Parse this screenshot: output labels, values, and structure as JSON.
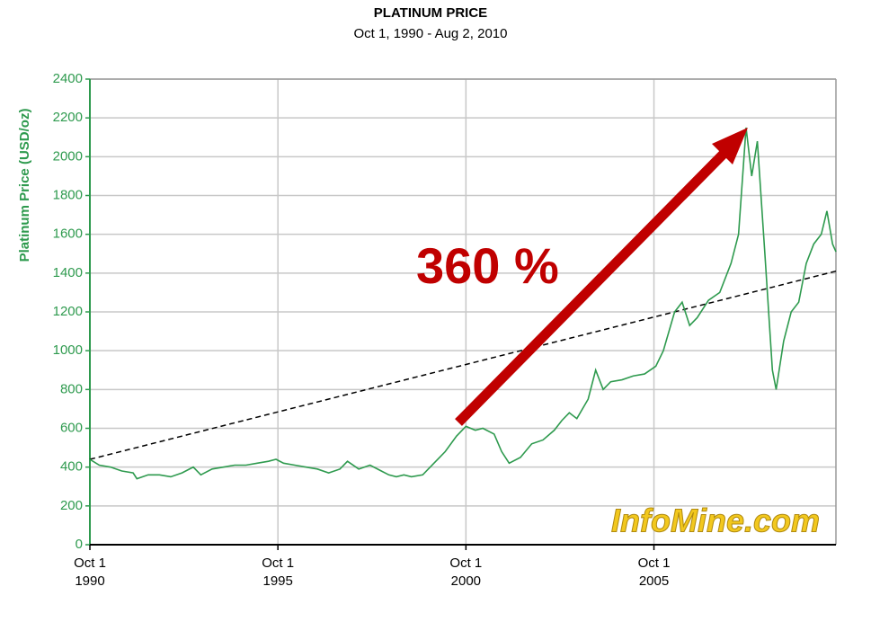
{
  "chart_data": {
    "type": "line",
    "title": "PLATINUM PRICE",
    "subtitle": "Oct 1, 1990 - Aug 2, 2010",
    "y_label": "Platinum Price (USD/oz)",
    "annotation": "360 %",
    "watermark": "InfoMine.com",
    "xlim": [
      1990.75,
      2010.59
    ],
    "xticks": [
      {
        "value": 1990.75,
        "label": "Oct 1\n1990"
      },
      {
        "value": 1995.75,
        "label": "Oct 1\n1995"
      },
      {
        "value": 2000.75,
        "label": "Oct 1\n2000"
      },
      {
        "value": 2005.75,
        "label": "Oct 1\n2005"
      }
    ],
    "ylim": [
      0,
      2400
    ],
    "yticks": [
      0,
      200,
      400,
      600,
      800,
      1000,
      1200,
      1400,
      1600,
      1800,
      2000,
      2200,
      2400
    ],
    "grid": true,
    "series": [
      {
        "color": "#2e9a4e",
        "x": [
          1990.75,
          1991.0,
          1991.3,
          1991.6,
          1991.9,
          1992.0,
          1992.3,
          1992.6,
          1992.9,
          1993.2,
          1993.5,
          1993.7,
          1994.0,
          1994.3,
          1994.6,
          1994.9,
          1995.2,
          1995.5,
          1995.7,
          1995.9,
          1996.2,
          1996.5,
          1996.8,
          1997.1,
          1997.4,
          1997.6,
          1997.9,
          1998.2,
          1998.5,
          1998.7,
          1998.9,
          1999.1,
          1999.3,
          1999.6,
          1999.9,
          2000.2,
          2000.5,
          2000.75,
          2001.0,
          2001.2,
          2001.5,
          2001.7,
          2001.9,
          2002.2,
          2002.5,
          2002.8,
          2003.1,
          2003.3,
          2003.5,
          2003.7,
          2004.0,
          2004.2,
          2004.4,
          2004.6,
          2004.9,
          2005.2,
          2005.5,
          2005.8,
          2006.0,
          2006.3,
          2006.5,
          2006.7,
          2006.9,
          2007.2,
          2007.5,
          2007.8,
          2008.0,
          2008.2,
          2008.35,
          2008.5,
          2008.7,
          2008.9,
          2009.0,
          2009.2,
          2009.4,
          2009.6,
          2009.8,
          2010.0,
          2010.2,
          2010.35,
          2010.5,
          2010.59
        ],
        "values": [
          440,
          410,
          400,
          380,
          370,
          340,
          360,
          360,
          350,
          370,
          400,
          360,
          390,
          400,
          410,
          410,
          420,
          430,
          440,
          420,
          410,
          400,
          390,
          370,
          390,
          430,
          390,
          410,
          380,
          360,
          350,
          360,
          350,
          360,
          420,
          480,
          560,
          610,
          590,
          600,
          570,
          480,
          420,
          450,
          520,
          540,
          590,
          640,
          680,
          650,
          750,
          900,
          800,
          840,
          850,
          870,
          880,
          920,
          1000,
          1200,
          1250,
          1130,
          1170,
          1260,
          1300,
          1450,
          1600,
          2150,
          1900,
          2080,
          1500,
          900,
          800,
          1050,
          1200,
          1250,
          1450,
          1550,
          1600,
          1720,
          1550,
          1510
        ]
      }
    ],
    "trend_line": {
      "x": [
        1990.75,
        2010.59
      ],
      "values": [
        440,
        1410
      ]
    }
  }
}
